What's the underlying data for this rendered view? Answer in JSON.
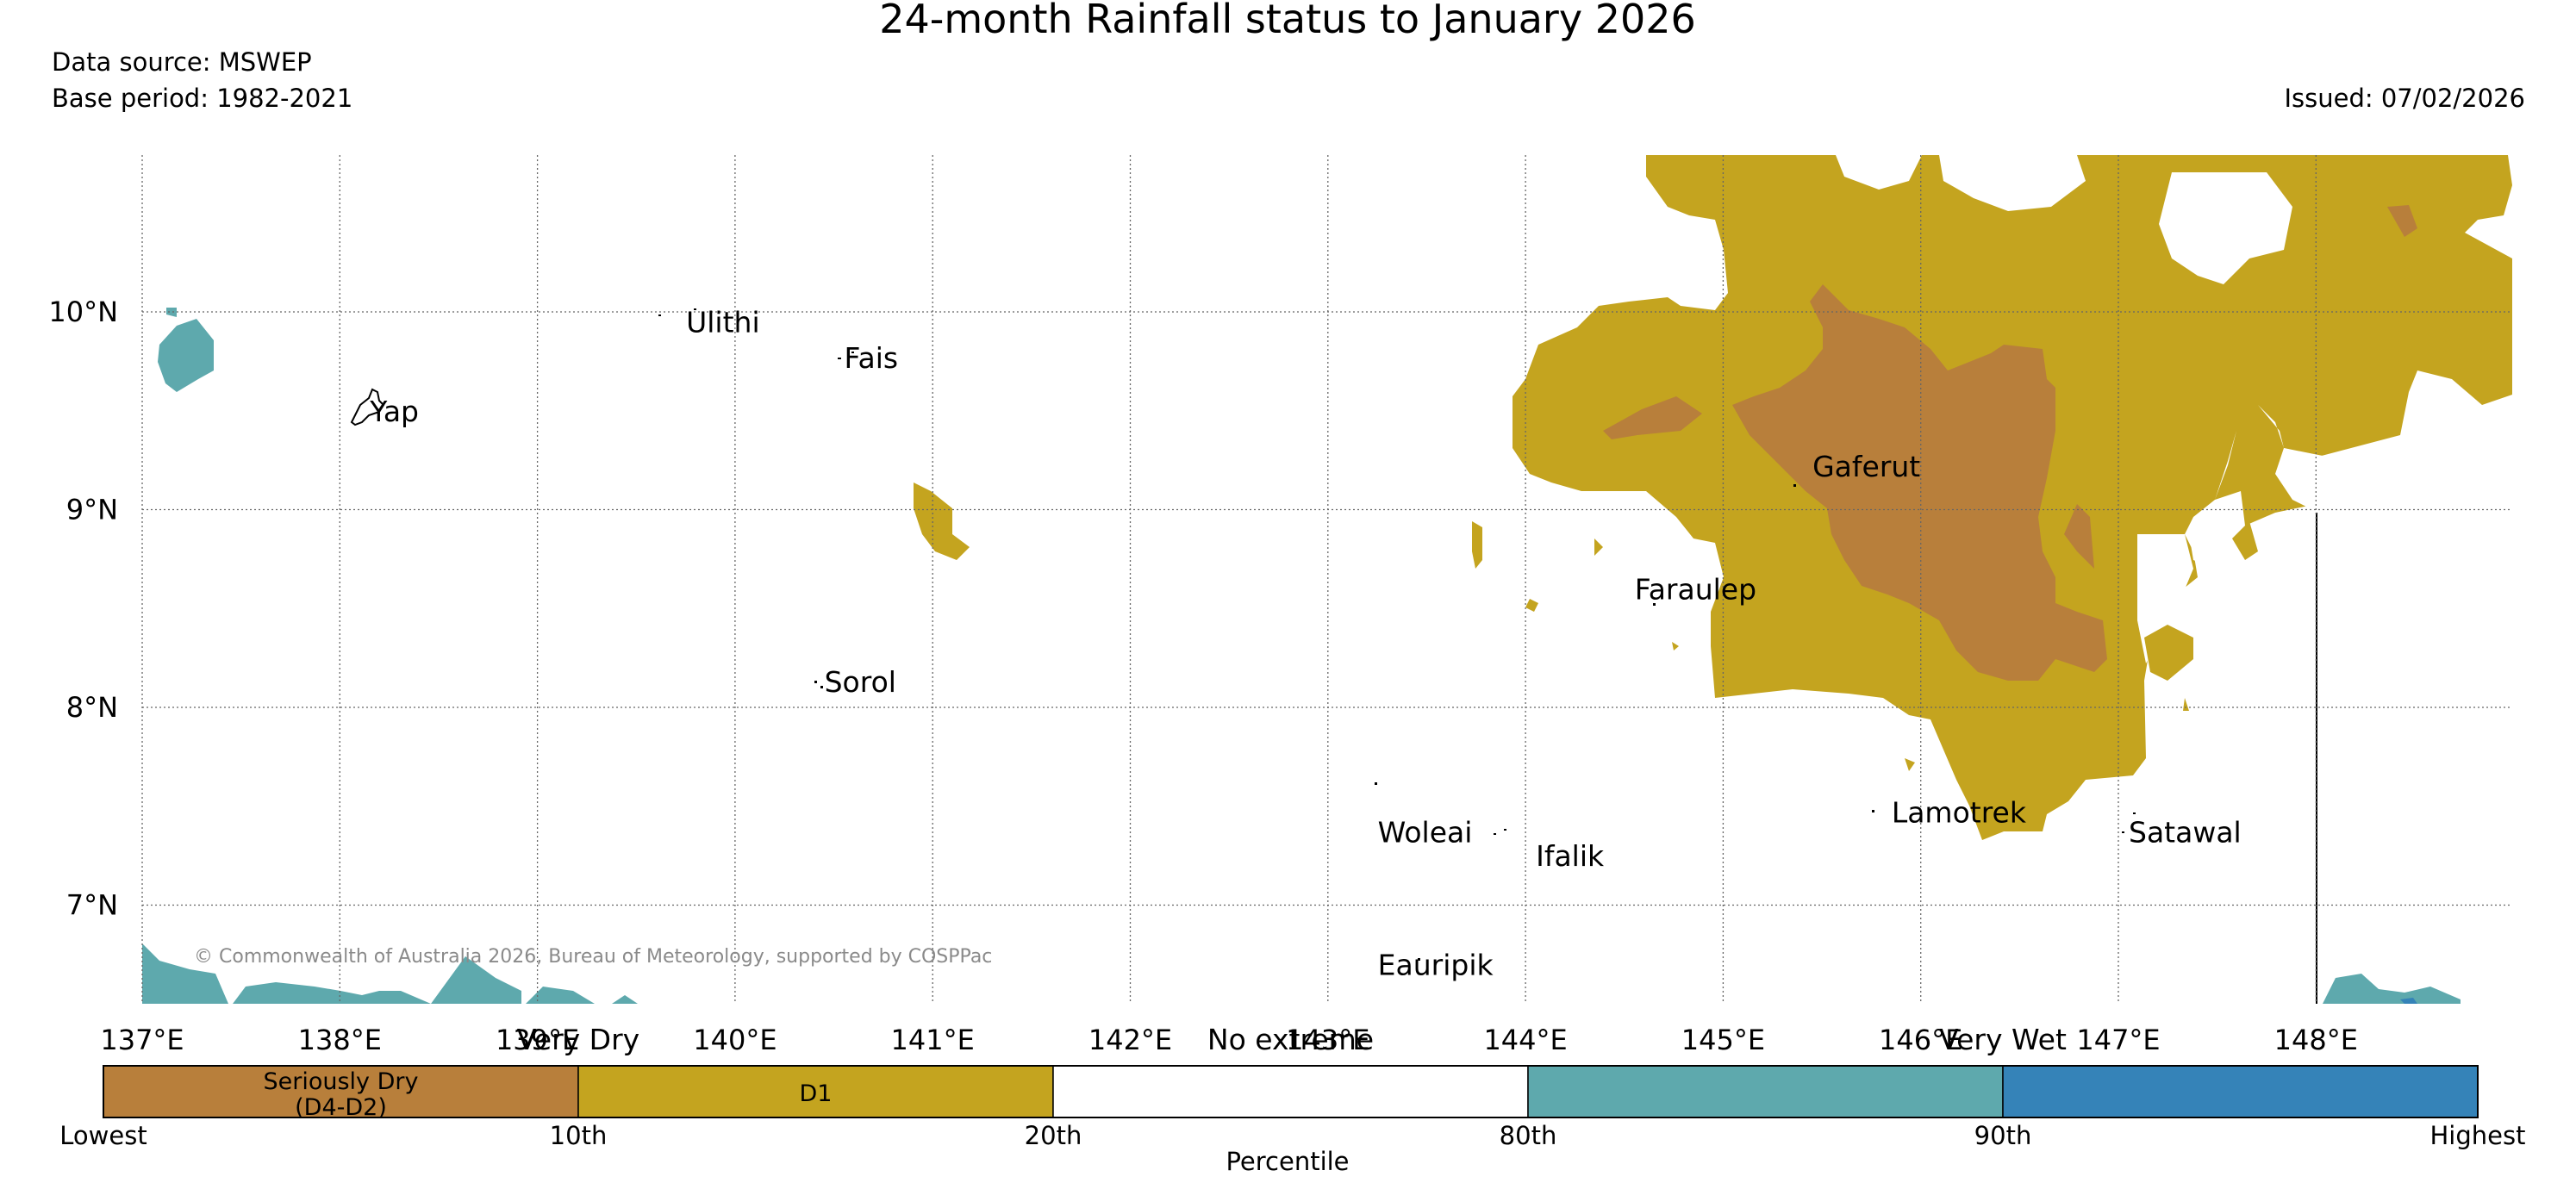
{
  "title": "24-month Rainfall status to January 2026",
  "data_source": "Data source: MSWEP",
  "base_period": "Base period: 1982-2021",
  "issued": "Issued: 07/02/2026",
  "copyright": "© Commonwealth of Australia 2026, Bureau of Meteorology, supported by COSPPac",
  "map": {
    "lon_range": [
      137,
      148.5
    ],
    "lat_range": [
      6.5,
      10.8
    ],
    "lon_ticks": [
      "137°E",
      "138°E",
      "139°E",
      "140°E",
      "141°E",
      "142°E",
      "143°E",
      "144°E",
      "145°E",
      "146°E",
      "147°E",
      "148°E"
    ],
    "lat_ticks": [
      "10°N",
      "9°N",
      "8°N",
      "7°N"
    ],
    "gridlines": "dotted",
    "places": [
      {
        "name": "Yap",
        "lon": 138.1,
        "lat": 9.5
      },
      {
        "name": "Ulithi",
        "lon": 139.7,
        "lat": 9.95
      },
      {
        "name": "Fais",
        "lon": 140.5,
        "lat": 9.77
      },
      {
        "name": "Sorol",
        "lon": 140.4,
        "lat": 8.13
      },
      {
        "name": "Gaferut",
        "lon": 145.4,
        "lat": 9.22
      },
      {
        "name": "Faraulep",
        "lon": 144.5,
        "lat": 8.6
      },
      {
        "name": "Woleai",
        "lon": 143.2,
        "lat": 7.37
      },
      {
        "name": "Ifalik",
        "lon": 144.0,
        "lat": 7.25
      },
      {
        "name": "Lamotrek",
        "lon": 145.8,
        "lat": 7.47
      },
      {
        "name": "Satawal",
        "lon": 147.0,
        "lat": 7.37
      },
      {
        "name": "Eauripik",
        "lon": 143.2,
        "lat": 6.7
      }
    ]
  },
  "legend": {
    "top_labels": [
      "Very Dry",
      "No extreme",
      "Very Wet"
    ],
    "categories": [
      {
        "label": "Seriously Dry\n(D4-D2)",
        "color": "#b87f3b"
      },
      {
        "label": "D1",
        "color": "#c4a41f"
      },
      {
        "label": "",
        "color": "#ffffff"
      },
      {
        "label": "",
        "color": "#5ea9ad"
      },
      {
        "label": "",
        "color": "#3583b8"
      }
    ],
    "bottom_labels": [
      "Lowest",
      "10th",
      "20th",
      "80th",
      "90th",
      "Highest"
    ],
    "xlabel": "Percentile"
  },
  "colors": {
    "seriously_dry": "#b87f3b",
    "d1": "#c4a41f",
    "wet": "#5ea9ad",
    "very_wet": "#3583b8",
    "grid": "#555555",
    "copyright": "#8a8a8a"
  }
}
